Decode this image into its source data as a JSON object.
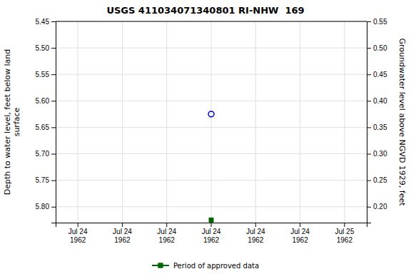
{
  "chart_data": {
    "type": "scatter",
    "title": "USGS 411034071340801 RI-NHW  169",
    "ylabel": "Depth to water level, feet below land\nsurface",
    "y2label": "Groundwater level above NGVD 1929, feet",
    "categories": [
      "Jul 24\n1962",
      "Jul 24\n1962",
      "Jul 24\n1962",
      "Jul 24\n1962",
      "Jul 24\n1962",
      "Jul 24\n1962",
      "Jul 25\n1962"
    ],
    "ylim": [
      5.83,
      5.45
    ],
    "yticks": [
      5.45,
      {
        "value": 5.5,
        "label": "5.50"
      },
      5.55,
      {
        "value": 5.6,
        "label": "5.60"
      },
      5.65,
      {
        "value": 5.7,
        "label": "5.70"
      },
      5.75,
      {
        "value": 5.8,
        "label": "5.80"
      }
    ],
    "y2lim": [
      0.17,
      0.55
    ],
    "y2ticks": [
      0.55,
      {
        "value": 0.5,
        "label": "0.50"
      },
      0.45,
      {
        "value": 0.4,
        "label": "0.40"
      },
      0.35,
      {
        "value": 0.3,
        "label": "0.30"
      },
      0.25,
      {
        "value": 0.2,
        "label": "0.20"
      }
    ],
    "grid": true,
    "legend": "bottom",
    "series": [
      {
        "color": "#0000cc",
        "marker": "circle-open",
        "values": [
          null,
          null,
          null,
          5.625,
          null,
          null,
          null
        ]
      },
      {
        "name": "Period of approved data",
        "color": "#006400",
        "marker": "square",
        "values": [
          null,
          null,
          null,
          5.825,
          null,
          null,
          null
        ]
      }
    ]
  }
}
